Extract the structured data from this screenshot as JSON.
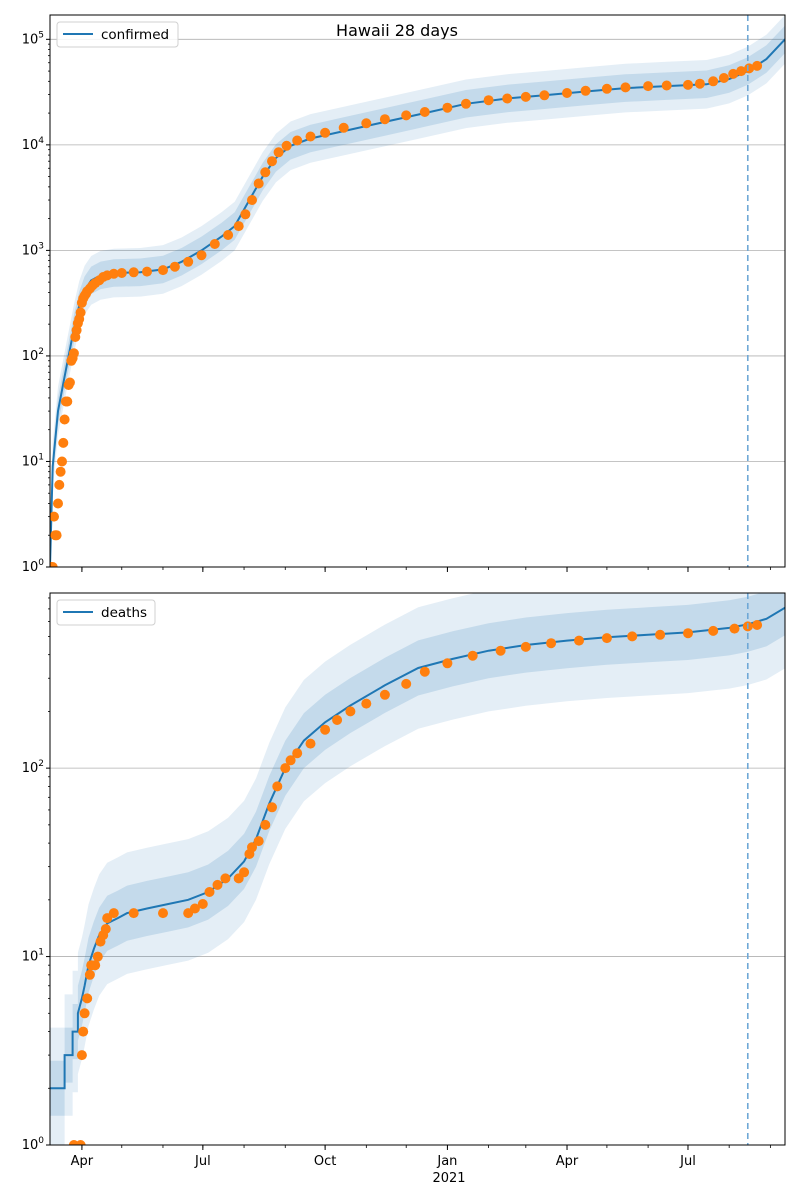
{
  "figure": {
    "title": "Hawaii 28 days"
  },
  "colors": {
    "fit": "#1f77b4",
    "observed": "#ff7f0e",
    "band": "#1f77b4",
    "grid": "#b0b0b0",
    "forecast_line": "#6fa8d6"
  },
  "x_axis": {
    "start": "2020-03-08",
    "end": "2021-09-12",
    "ticks": [
      {
        "date": "2020-04-01",
        "label": "Apr"
      },
      {
        "date": "2020-07-01",
        "label": "Jul"
      },
      {
        "date": "2020-10-01",
        "label": "Oct"
      },
      {
        "date": "2021-01-01",
        "label": "Jan"
      },
      {
        "date": "2021-04-01",
        "label": "Apr"
      },
      {
        "date": "2021-07-01",
        "label": "Jul"
      }
    ],
    "year_label": "2021",
    "forecast_start": "2021-08-15"
  },
  "chart_data": [
    {
      "type": "line",
      "legend": "confirmed",
      "legend_position": "top-left",
      "y_scale": "log",
      "ylim": [
        1,
        170000
      ],
      "y_ticks": [
        {
          "value": 1,
          "label": "10^0"
        },
        {
          "value": 10,
          "label": "10^1"
        },
        {
          "value": 100,
          "label": "10^2"
        },
        {
          "value": 1000,
          "label": "10^3"
        },
        {
          "value": 10000,
          "label": "10^4"
        },
        {
          "value": 100000,
          "label": "10^5"
        }
      ],
      "grid": "horizontal",
      "fit_line": [
        [
          "2020-03-08",
          1
        ],
        [
          "2020-03-10",
          9
        ],
        [
          "2020-03-14",
          30
        ],
        [
          "2020-03-18",
          55
        ],
        [
          "2020-03-22",
          100
        ],
        [
          "2020-03-26",
          180
        ],
        [
          "2020-03-30",
          300
        ],
        [
          "2020-04-03",
          420
        ],
        [
          "2020-04-08",
          520
        ],
        [
          "2020-04-15",
          580
        ],
        [
          "2020-04-25",
          610
        ],
        [
          "2020-05-15",
          620
        ],
        [
          "2020-06-01",
          660
        ],
        [
          "2020-06-15",
          780
        ],
        [
          "2020-06-30",
          1000
        ],
        [
          "2020-07-15",
          1350
        ],
        [
          "2020-07-25",
          1700
        ],
        [
          "2020-08-05",
          3000
        ],
        [
          "2020-08-15",
          5000
        ],
        [
          "2020-08-25",
          7500
        ],
        [
          "2020-09-05",
          9800
        ],
        [
          "2020-09-20",
          11500
        ],
        [
          "2020-10-15",
          13500
        ],
        [
          "2020-11-15",
          16500
        ],
        [
          "2020-12-15",
          20000
        ],
        [
          "2021-01-15",
          24500
        ],
        [
          "2021-02-15",
          27500
        ],
        [
          "2021-03-15",
          29500
        ],
        [
          "2021-04-15",
          32000
        ],
        [
          "2021-05-15",
          34500
        ],
        [
          "2021-06-15",
          36000
        ],
        [
          "2021-07-15",
          37500
        ],
        [
          "2021-08-01",
          42000
        ],
        [
          "2021-08-15",
          50000
        ],
        [
          "2021-08-29",
          65000
        ],
        [
          "2021-09-12",
          100000
        ]
      ],
      "band_scale": [
        1.35,
        1.7
      ],
      "observed": [
        [
          "2020-03-08",
          1
        ],
        [
          "2020-03-09",
          1
        ],
        [
          "2020-03-10",
          1
        ],
        [
          "2020-03-11",
          3
        ],
        [
          "2020-03-12",
          2
        ],
        [
          "2020-03-13",
          2
        ],
        [
          "2020-03-14",
          4
        ],
        [
          "2020-03-15",
          6
        ],
        [
          "2020-03-16",
          8
        ],
        [
          "2020-03-17",
          10
        ],
        [
          "2020-03-18",
          15
        ],
        [
          "2020-03-19",
          25
        ],
        [
          "2020-03-20",
          37
        ],
        [
          "2020-03-21",
          37
        ],
        [
          "2020-03-22",
          53
        ],
        [
          "2020-03-23",
          56
        ],
        [
          "2020-03-24",
          90
        ],
        [
          "2020-03-25",
          95
        ],
        [
          "2020-03-26",
          106
        ],
        [
          "2020-03-27",
          151
        ],
        [
          "2020-03-28",
          175
        ],
        [
          "2020-03-29",
          204
        ],
        [
          "2020-03-30",
          224
        ],
        [
          "2020-03-31",
          258
        ],
        [
          "2020-04-01",
          319
        ],
        [
          "2020-04-02",
          351
        ],
        [
          "2020-04-03",
          371
        ],
        [
          "2020-04-04",
          387
        ],
        [
          "2020-04-05",
          410
        ],
        [
          "2020-04-07",
          435
        ],
        [
          "2020-04-09",
          465
        ],
        [
          "2020-04-11",
          490
        ],
        [
          "2020-04-14",
          520
        ],
        [
          "2020-04-17",
          560
        ],
        [
          "2020-04-20",
          580
        ],
        [
          "2020-04-25",
          600
        ],
        [
          "2020-05-01",
          610
        ],
        [
          "2020-05-10",
          620
        ],
        [
          "2020-05-20",
          630
        ],
        [
          "2020-06-01",
          650
        ],
        [
          "2020-06-10",
          700
        ],
        [
          "2020-06-20",
          780
        ],
        [
          "2020-06-30",
          900
        ],
        [
          "2020-07-10",
          1150
        ],
        [
          "2020-07-20",
          1400
        ],
        [
          "2020-07-28",
          1700
        ],
        [
          "2020-08-02",
          2200
        ],
        [
          "2020-08-07",
          3000
        ],
        [
          "2020-08-12",
          4300
        ],
        [
          "2020-08-17",
          5500
        ],
        [
          "2020-08-22",
          7000
        ],
        [
          "2020-08-27",
          8500
        ],
        [
          "2020-09-02",
          9800
        ],
        [
          "2020-09-10",
          11000
        ],
        [
          "2020-09-20",
          12000
        ],
        [
          "2020-10-01",
          13000
        ],
        [
          "2020-10-15",
          14500
        ],
        [
          "2020-11-01",
          16000
        ],
        [
          "2020-11-15",
          17500
        ],
        [
          "2020-12-01",
          19000
        ],
        [
          "2020-12-15",
          20500
        ],
        [
          "2021-01-01",
          22500
        ],
        [
          "2021-01-15",
          24500
        ],
        [
          "2021-02-01",
          26500
        ],
        [
          "2021-02-15",
          27500
        ],
        [
          "2021-03-01",
          28500
        ],
        [
          "2021-03-15",
          29500
        ],
        [
          "2021-04-01",
          31000
        ],
        [
          "2021-04-15",
          32500
        ],
        [
          "2021-05-01",
          34000
        ],
        [
          "2021-05-15",
          35000
        ],
        [
          "2021-06-01",
          36000
        ],
        [
          "2021-06-15",
          36500
        ],
        [
          "2021-07-01",
          37000
        ],
        [
          "2021-07-10",
          38000
        ],
        [
          "2021-07-20",
          40000
        ],
        [
          "2021-07-28",
          43000
        ],
        [
          "2021-08-04",
          47000
        ],
        [
          "2021-08-10",
          50000
        ],
        [
          "2021-08-16",
          53000
        ],
        [
          "2021-08-22",
          56000
        ]
      ]
    },
    {
      "type": "line",
      "legend": "deaths",
      "legend_position": "top-left",
      "y_scale": "log",
      "ylim": [
        1,
        850
      ],
      "y_ticks": [
        {
          "value": 1,
          "label": "10^0"
        },
        {
          "value": 10,
          "label": "10^1"
        },
        {
          "value": 100,
          "label": "10^2"
        }
      ],
      "grid": "horizontal",
      "fit_line": [
        [
          "2020-03-08",
          2
        ],
        [
          "2020-03-19",
          2
        ],
        [
          "2020-03-19",
          3
        ],
        [
          "2020-03-25",
          3
        ],
        [
          "2020-03-25",
          4
        ],
        [
          "2020-03-29",
          4
        ],
        [
          "2020-03-29",
          5
        ],
        [
          "2020-04-01",
          6
        ],
        [
          "2020-04-03",
          7
        ],
        [
          "2020-04-06",
          9
        ],
        [
          "2020-04-10",
          11
        ],
        [
          "2020-04-14",
          13
        ],
        [
          "2020-04-20",
          15
        ],
        [
          "2020-04-28",
          16
        ],
        [
          "2020-05-05",
          17
        ],
        [
          "2020-05-20",
          18
        ],
        [
          "2020-06-05",
          19
        ],
        [
          "2020-06-20",
          20
        ],
        [
          "2020-07-05",
          22
        ],
        [
          "2020-07-20",
          26
        ],
        [
          "2020-08-01",
          32
        ],
        [
          "2020-08-10",
          42
        ],
        [
          "2020-08-20",
          65
        ],
        [
          "2020-09-01",
          100
        ],
        [
          "2020-09-15",
          140
        ],
        [
          "2020-10-01",
          175
        ],
        [
          "2020-10-20",
          215
        ],
        [
          "2020-11-15",
          275
        ],
        [
          "2020-12-10",
          340
        ],
        [
          "2021-01-05",
          380
        ],
        [
          "2021-02-01",
          420
        ],
        [
          "2021-03-01",
          450
        ],
        [
          "2021-04-01",
          475
        ],
        [
          "2021-05-01",
          495
        ],
        [
          "2021-06-01",
          510
        ],
        [
          "2021-07-01",
          525
        ],
        [
          "2021-08-01",
          555
        ],
        [
          "2021-08-15",
          580
        ],
        [
          "2021-08-29",
          620
        ],
        [
          "2021-09-12",
          710
        ]
      ],
      "band_scale": [
        1.4,
        2.1
      ],
      "observed": [
        [
          "2020-03-26",
          1
        ],
        [
          "2020-03-31",
          1
        ],
        [
          "2020-04-01",
          3
        ],
        [
          "2020-04-02",
          4
        ],
        [
          "2020-04-03",
          5
        ],
        [
          "2020-04-05",
          6
        ],
        [
          "2020-04-07",
          8
        ],
        [
          "2020-04-08",
          9
        ],
        [
          "2020-04-11",
          9
        ],
        [
          "2020-04-13",
          10
        ],
        [
          "2020-04-15",
          12
        ],
        [
          "2020-04-17",
          13
        ],
        [
          "2020-04-19",
          14
        ],
        [
          "2020-04-20",
          16
        ],
        [
          "2020-04-25",
          17
        ],
        [
          "2020-05-10",
          17
        ],
        [
          "2020-06-01",
          17
        ],
        [
          "2020-06-20",
          17
        ],
        [
          "2020-06-25",
          18
        ],
        [
          "2020-07-01",
          19
        ],
        [
          "2020-07-06",
          22
        ],
        [
          "2020-07-12",
          24
        ],
        [
          "2020-07-18",
          26
        ],
        [
          "2020-07-28",
          26
        ],
        [
          "2020-08-01",
          28
        ],
        [
          "2020-08-05",
          35
        ],
        [
          "2020-08-07",
          38
        ],
        [
          "2020-08-12",
          41
        ],
        [
          "2020-08-17",
          50
        ],
        [
          "2020-08-22",
          62
        ],
        [
          "2020-08-26",
          80
        ],
        [
          "2020-09-01",
          100
        ],
        [
          "2020-09-05",
          110
        ],
        [
          "2020-09-10",
          120
        ],
        [
          "2020-09-20",
          135
        ],
        [
          "2020-10-01",
          160
        ],
        [
          "2020-10-10",
          180
        ],
        [
          "2020-10-20",
          200
        ],
        [
          "2020-11-01",
          220
        ],
        [
          "2020-11-15",
          245
        ],
        [
          "2020-12-01",
          280
        ],
        [
          "2020-12-15",
          325
        ],
        [
          "2021-01-01",
          360
        ],
        [
          "2021-01-20",
          395
        ],
        [
          "2021-02-10",
          420
        ],
        [
          "2021-03-01",
          440
        ],
        [
          "2021-03-20",
          460
        ],
        [
          "2021-04-10",
          475
        ],
        [
          "2021-05-01",
          490
        ],
        [
          "2021-05-20",
          500
        ],
        [
          "2021-06-10",
          510
        ],
        [
          "2021-07-01",
          520
        ],
        [
          "2021-07-20",
          535
        ],
        [
          "2021-08-05",
          550
        ],
        [
          "2021-08-15",
          565
        ],
        [
          "2021-08-22",
          575
        ]
      ]
    }
  ]
}
